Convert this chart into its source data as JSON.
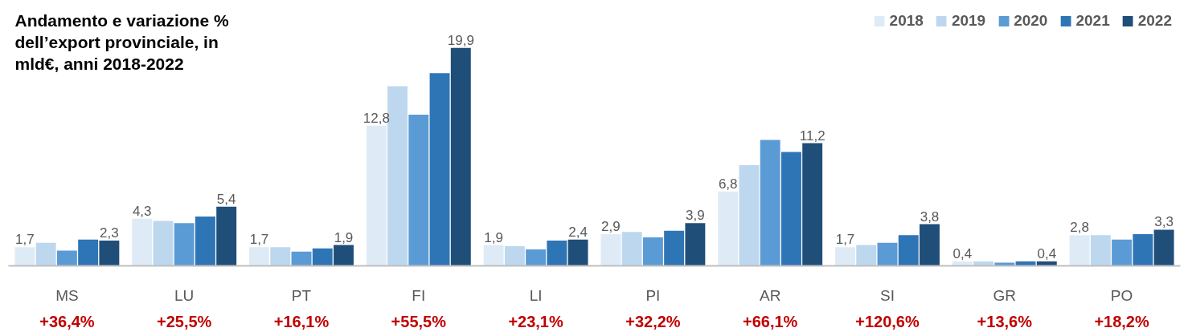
{
  "chart_data": {
    "type": "bar",
    "title": "Andamento e variazione % dell’export provinciale, in mld€, anni 2018-2022",
    "categories": [
      "MS",
      "LU",
      "PT",
      "FI",
      "LI",
      "PI",
      "AR",
      "SI",
      "GR",
      "PO"
    ],
    "series": [
      {
        "name": "2018",
        "color": "#deebf7",
        "values": [
          1.7,
          4.3,
          1.7,
          12.8,
          1.9,
          2.9,
          6.8,
          1.7,
          0.4,
          2.8
        ],
        "value_labels": [
          "1,7",
          "4,3",
          "1,7",
          "12,8",
          "1,9",
          "2,9",
          "6,8",
          "1,7",
          "0,4",
          "2,8"
        ]
      },
      {
        "name": "2019",
        "color": "#bdd7ee",
        "values": [
          2.1,
          4.1,
          1.7,
          16.4,
          1.8,
          3.1,
          9.2,
          1.9,
          0.4,
          2.8
        ]
      },
      {
        "name": "2020",
        "color": "#5b9bd5",
        "values": [
          1.4,
          3.9,
          1.3,
          13.8,
          1.5,
          2.6,
          11.5,
          2.1,
          0.3,
          2.4
        ]
      },
      {
        "name": "2021",
        "color": "#2e75b6",
        "values": [
          2.4,
          4.5,
          1.6,
          17.6,
          2.3,
          3.2,
          10.4,
          2.8,
          0.4,
          2.9
        ]
      },
      {
        "name": "2022",
        "color": "#1f4e79",
        "values": [
          2.3,
          5.4,
          1.9,
          19.9,
          2.4,
          3.9,
          11.2,
          3.8,
          0.4,
          3.3
        ],
        "value_labels": [
          "2,3",
          "5,4",
          "1,9",
          "19,9",
          "2,4",
          "3,9",
          "11,2",
          "3,8",
          "0,4",
          "3,3"
        ]
      }
    ],
    "annotations": [
      "+36,4%",
      "+25,5%",
      "+16,1%",
      "+55,5%",
      "+23,1%",
      "+32,2%",
      "+66,1%",
      "+120,6%",
      "+13,6%",
      "+18,2%"
    ],
    "legend": "top right",
    "grid": false
  }
}
